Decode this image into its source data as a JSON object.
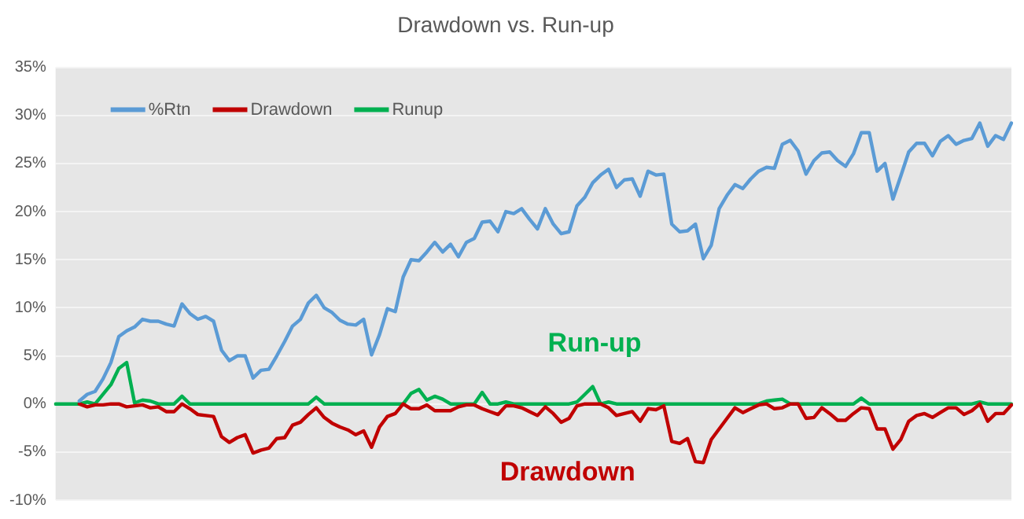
{
  "chart_data": {
    "type": "line",
    "title": "Drawdown vs. Run-up",
    "categories": [
      null,
      null,
      null,
      null,
      null,
      null,
      null,
      null,
      null,
      null,
      null,
      null,
      null,
      null,
      null,
      null,
      null,
      null,
      null,
      null,
      null,
      null,
      null,
      null,
      null,
      null,
      null,
      null,
      null,
      null,
      null,
      null,
      null,
      null,
      null,
      null,
      null,
      null,
      null,
      null,
      null,
      null,
      null,
      null,
      null,
      null,
      null,
      null,
      null,
      null,
      null,
      null,
      null,
      null,
      null,
      null,
      null,
      null,
      null,
      null,
      null,
      null,
      null,
      null,
      null,
      null,
      null,
      null,
      null,
      null,
      null,
      null,
      null,
      null,
      null,
      null,
      null,
      null,
      null,
      null,
      null,
      null,
      null,
      null,
      null,
      null,
      null,
      null,
      null,
      null,
      null,
      null,
      null,
      null,
      null,
      null,
      null,
      null,
      null,
      null,
      null,
      null,
      null,
      null,
      null,
      null,
      null,
      null,
      null,
      null,
      null,
      null,
      null,
      null,
      null,
      null,
      null,
      null,
      null,
      null,
      null,
      null
    ],
    "series": [
      {
        "name": "%Rtn",
        "color": "#5b9bd5",
        "values": [
          null,
          null,
          null,
          0.3,
          1.0,
          1.3,
          2.6,
          4.3,
          7.0,
          7.6,
          8.0,
          8.8,
          8.6,
          8.6,
          8.3,
          8.1,
          10.4,
          9.4,
          8.8,
          9.1,
          8.6,
          5.6,
          4.5,
          5.0,
          5.0,
          2.7,
          3.5,
          3.6,
          5.0,
          6.5,
          8.1,
          8.8,
          10.5,
          11.3,
          10.0,
          9.5,
          8.7,
          8.3,
          8.2,
          8.8,
          5.1,
          7.2,
          9.9,
          9.6,
          13.2,
          15.0,
          14.9,
          15.8,
          16.8,
          15.8,
          16.6,
          15.3,
          16.8,
          17.2,
          18.9,
          19.0,
          17.9,
          20.0,
          19.8,
          20.3,
          19.2,
          18.2,
          20.3,
          18.7,
          17.7,
          17.9,
          20.6,
          21.5,
          23.0,
          23.8,
          24.4,
          22.5,
          23.3,
          23.4,
          21.6,
          24.2,
          23.8,
          23.9,
          18.7,
          17.9,
          18.0,
          18.7,
          15.1,
          16.5,
          20.3,
          21.7,
          22.8,
          22.4,
          23.4,
          24.2,
          24.6,
          24.5,
          27.0,
          27.4,
          26.3,
          23.9,
          25.3,
          26.1,
          26.2,
          25.3,
          24.7,
          26.0,
          28.2,
          28.2,
          24.2,
          25.0,
          21.3,
          23.7,
          26.2,
          27.1,
          27.1,
          25.8,
          27.3,
          27.9,
          27.0,
          27.4,
          27.6,
          29.2,
          26.8,
          27.9,
          27.5,
          29.2
        ]
      },
      {
        "name": "Drawdown",
        "color": "#c00000",
        "values": [
          null,
          null,
          null,
          0,
          -0.3,
          -0.1,
          -0.1,
          0,
          0,
          -0.3,
          -0.2,
          -0.1,
          -0.4,
          -0.3,
          -0.8,
          -0.8,
          0,
          -0.5,
          -1.1,
          -1.2,
          -1.3,
          -3.4,
          -4.0,
          -3.5,
          -3.2,
          -5.1,
          -4.8,
          -4.6,
          -3.6,
          -3.5,
          -2.2,
          -1.9,
          -1.1,
          -0.4,
          -1.4,
          -2.0,
          -2.4,
          -2.7,
          -3.2,
          -2.8,
          -4.5,
          -2.4,
          -1.3,
          -1.0,
          0,
          -0.5,
          -0.5,
          -0.1,
          -0.7,
          -0.7,
          -0.7,
          -0.3,
          -0.1,
          -0.1,
          -0.5,
          -0.8,
          -1.1,
          -0.2,
          -0.2,
          -0.4,
          -0.8,
          -1.2,
          -0.3,
          -1.0,
          -1.9,
          -1.5,
          -0.2,
          0,
          0,
          0,
          -0.4,
          -1.2,
          -1.0,
          -0.8,
          -1.8,
          -0.5,
          -0.6,
          -0.2,
          -3.9,
          -4.1,
          -3.6,
          -6.0,
          -6.1,
          -3.7,
          -2.6,
          -1.5,
          -0.4,
          -0.9,
          -0.5,
          -0.1,
          0,
          -0.5,
          -0.4,
          0,
          0,
          -1.5,
          -1.4,
          -0.4,
          -1.0,
          -1.7,
          -1.7,
          -1.0,
          -0.4,
          -0.5,
          -2.6,
          -2.6,
          -4.7,
          -3.7,
          -1.8,
          -1.2,
          -1.0,
          -1.4,
          -0.9,
          -0.4,
          -0.4,
          -1.1,
          -0.7,
          0,
          -1.8,
          -1.0,
          -1.0,
          -0.1
        ]
      },
      {
        "name": "Runup",
        "color": "#00b050",
        "values": [
          0,
          0,
          0,
          0,
          0.2,
          0,
          1.0,
          2.0,
          3.7,
          4.3,
          0.1,
          0.4,
          0.3,
          0,
          0,
          0,
          0.8,
          0,
          0,
          0,
          0,
          0,
          0,
          0,
          0,
          0,
          0,
          0,
          0,
          0,
          0,
          0,
          0,
          0.7,
          0,
          0,
          0,
          0,
          0,
          0,
          0,
          0,
          0,
          0,
          0,
          1.1,
          1.5,
          0.4,
          0.8,
          0.5,
          0,
          0,
          0,
          0,
          1.2,
          0,
          0,
          0.2,
          0,
          0,
          0,
          0,
          0,
          0,
          0,
          0,
          0.2,
          1.0,
          1.8,
          0,
          0.2,
          0,
          0,
          0,
          0,
          0,
          0,
          0,
          0,
          0,
          0,
          0,
          0,
          0,
          0,
          0,
          0,
          0,
          0,
          0,
          0.3,
          0.4,
          0.5,
          0,
          0,
          0,
          0,
          0,
          0,
          0,
          0,
          0,
          0.6,
          0,
          0,
          0,
          0,
          0,
          0,
          0,
          0,
          0,
          0,
          0,
          0,
          0,
          0,
          0.2,
          0,
          0,
          0,
          0
        ]
      }
    ],
    "ylim": [
      -10,
      35
    ],
    "yticks": [
      {
        "value": -10,
        "label": "-10%"
      },
      {
        "value": -5,
        "label": "-5%"
      },
      {
        "value": 0,
        "label": "0%"
      },
      {
        "value": 5,
        "label": "5%"
      },
      {
        "value": 10,
        "label": "10%"
      },
      {
        "value": 15,
        "label": "15%"
      },
      {
        "value": 20,
        "label": "20%"
      },
      {
        "value": 25,
        "label": "25%"
      },
      {
        "value": 30,
        "label": "30%"
      },
      {
        "value": 35,
        "label": "35%"
      }
    ],
    "annotations": [
      "Run-up",
      "Drawdown"
    ],
    "grid": "y",
    "legend": "top left",
    "marker": "none",
    "line_style": "solid",
    "tick_labels": "y"
  }
}
